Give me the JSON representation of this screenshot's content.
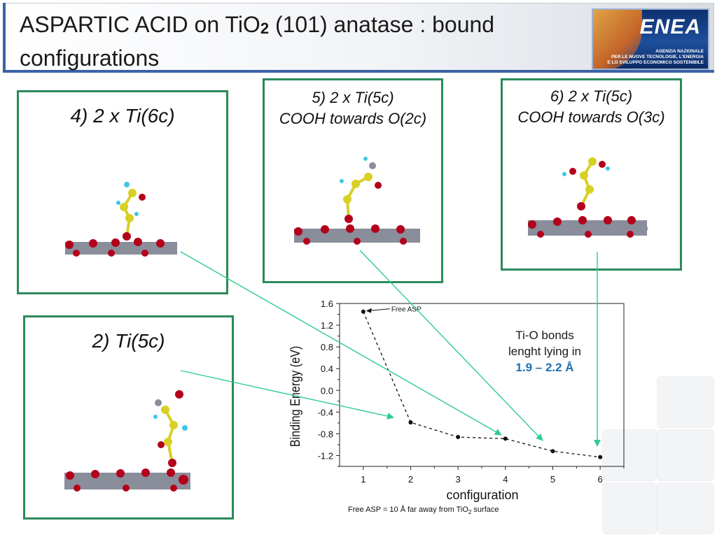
{
  "slide": {
    "title_main": "ASPARTIC ACID on TiO",
    "title_sub2": "2",
    "title_rest": " (101) anatase : bound",
    "title_line2": "configurations"
  },
  "logo": {
    "wordmark": "ENEA",
    "caption_lines": [
      "AGENZIA NAZIONALE",
      "PER LE NUOVE TECNOLOGIE, L'ENERGIA",
      "E LO SVILUPPO ECONOMICO SOSTENIBILE"
    ]
  },
  "panels": {
    "p4": {
      "lines": [
        "4) 2 x Ti(6c)"
      ]
    },
    "p5": {
      "lines": [
        "5) 2 x Ti(5c)",
        "COOH towards O(2c)"
      ]
    },
    "p6": {
      "lines": [
        "6) 2 x Ti(5c)",
        "COOH towards O(3c)"
      ]
    },
    "p2": {
      "lines": [
        "2) Ti(5c)"
      ]
    }
  },
  "annotation": {
    "line1": "Ti-O bonds",
    "line2": "lenght lying in",
    "highlight": "1.9 – 2.2 Å"
  },
  "footnote": {
    "prefix": "Free ASP = 10 Å far away from TiO",
    "sub": "2",
    "suffix": " surface"
  },
  "colors": {
    "panel_border": "#2a8a5a",
    "arrow": "#2ecc8f",
    "highlight": "#1f6fb0",
    "title_accent": "#3a63a6",
    "atom_O": "#b3001b",
    "atom_Ti": "#8a8d9a",
    "atom_C": "#d8d024",
    "atom_H": "#3cc7e6"
  },
  "chart_data": {
    "type": "line",
    "title": "",
    "xlabel": "configuration",
    "ylabel": "Binding Energy (eV)",
    "x": [
      1,
      2,
      3,
      4,
      5,
      6
    ],
    "y": [
      1.45,
      -0.59,
      -0.86,
      -0.89,
      -1.12,
      -1.23
    ],
    "xlim": [
      0.5,
      6.5
    ],
    "ylim": [
      -1.4,
      1.6
    ],
    "xticks": [
      "1",
      "2",
      "3",
      "4",
      "5",
      "6"
    ],
    "yticks": [
      "1.6",
      "1.2",
      "0.8",
      "0.4",
      "0.0",
      "-0.4",
      "-0.8",
      "-1.2"
    ],
    "line_style": "dashed",
    "grid": false,
    "annotations": [
      {
        "text": "Free ASP",
        "x": 1
      }
    ]
  }
}
